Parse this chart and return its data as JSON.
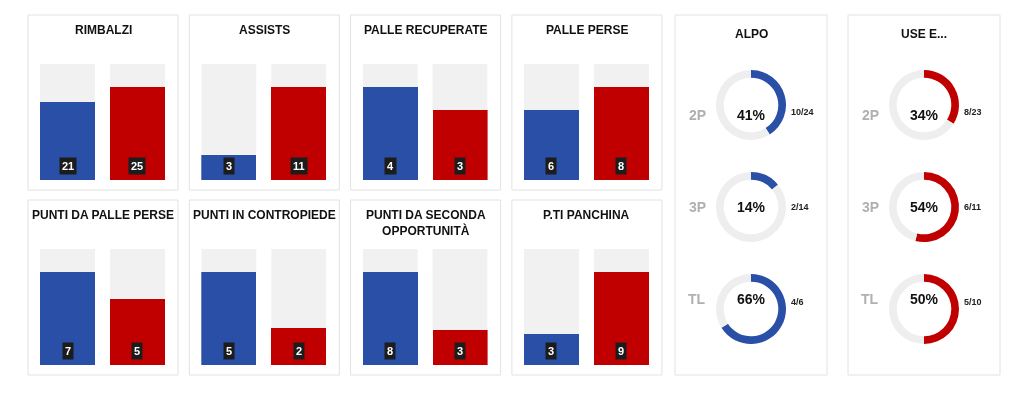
{
  "chart_data": [
    {
      "type": "bar",
      "title": "RIMBALZI",
      "categories": [
        null,
        null
      ],
      "values": [
        21,
        25
      ],
      "colors": [
        "#2a4fa6",
        "#c00000"
      ],
      "data_labels": true
    },
    {
      "type": "bar",
      "title": "ASSISTS",
      "categories": [
        null,
        null
      ],
      "values": [
        3,
        11
      ],
      "colors": [
        "#2a4fa6",
        "#c00000"
      ],
      "data_labels": true
    },
    {
      "type": "bar",
      "title": "PALLE RECUPERATE",
      "categories": [
        null,
        null
      ],
      "values": [
        4,
        3
      ],
      "colors": [
        "#2a4fa6",
        "#c00000"
      ],
      "data_labels": true
    },
    {
      "type": "bar",
      "title": "PALLE PERSE",
      "categories": [
        null,
        null
      ],
      "values": [
        6,
        8
      ],
      "colors": [
        "#2a4fa6",
        "#c00000"
      ],
      "data_labels": true
    },
    {
      "type": "bar",
      "title": "PUNTI DA PALLE PERSE",
      "categories": [
        null,
        null
      ],
      "values": [
        7,
        5
      ],
      "colors": [
        "#2a4fa6",
        "#c00000"
      ],
      "data_labels": true
    },
    {
      "type": "bar",
      "title": "PUNTI IN CONTROPIEDE",
      "categories": [
        null,
        null
      ],
      "values": [
        5,
        2
      ],
      "colors": [
        "#2a4fa6",
        "#c00000"
      ],
      "data_labels": true
    },
    {
      "type": "bar",
      "title": "PUNTI DA SECONDA\nOPPORTUNITÀ",
      "categories": [
        null,
        null
      ],
      "values": [
        8,
        3
      ],
      "colors": [
        "#2a4fa6",
        "#c00000"
      ],
      "data_labels": true
    },
    {
      "type": "bar",
      "title": "P.TI PANCHINA",
      "categories": [
        null,
        null
      ],
      "values": [
        3,
        9
      ],
      "colors": [
        "#2a4fa6",
        "#c00000"
      ],
      "data_labels": true
    },
    {
      "type": "other",
      "title": "ALPO"
    },
    {
      "type": "donut",
      "categories": [
        null,
        null
      ],
      "values": [
        41,
        59
      ],
      "colors": [
        "#2a4fa6",
        "#eeeeee"
      ],
      "annotations": [
        "2P",
        "41%",
        "10/24"
      ]
    },
    {
      "type": "donut",
      "categories": [
        null,
        null
      ],
      "values": [
        14,
        86
      ],
      "colors": [
        "#2a4fa6",
        "#eeeeee"
      ],
      "annotations": [
        "3P",
        "14%",
        "2/14"
      ]
    },
    {
      "type": "donut",
      "categories": [
        null,
        null
      ],
      "values": [
        66,
        34
      ],
      "colors": [
        "#2a4fa6",
        "#eeeeee"
      ],
      "annotations": [
        "TL",
        "66%",
        "4/6"
      ]
    },
    {
      "type": "other",
      "title": "USE E..."
    },
    {
      "type": "donut",
      "categories": [
        null,
        null
      ],
      "values": [
        34,
        66
      ],
      "colors": [
        "#c00000",
        "#eeeeee"
      ],
      "annotations": [
        "2P",
        "34%",
        "8/23"
      ]
    },
    {
      "type": "donut",
      "categories": [
        null,
        null
      ],
      "values": [
        54,
        46
      ],
      "colors": [
        "#c00000",
        "#eeeeee"
      ],
      "annotations": [
        "3P",
        "54%",
        "6/11"
      ]
    },
    {
      "type": "donut",
      "categories": [
        null,
        null
      ],
      "values": [
        50,
        50
      ],
      "colors": [
        "#c00000",
        "#eeeeee"
      ],
      "annotations": [
        "TL",
        "50%",
        "5/10"
      ]
    }
  ]
}
